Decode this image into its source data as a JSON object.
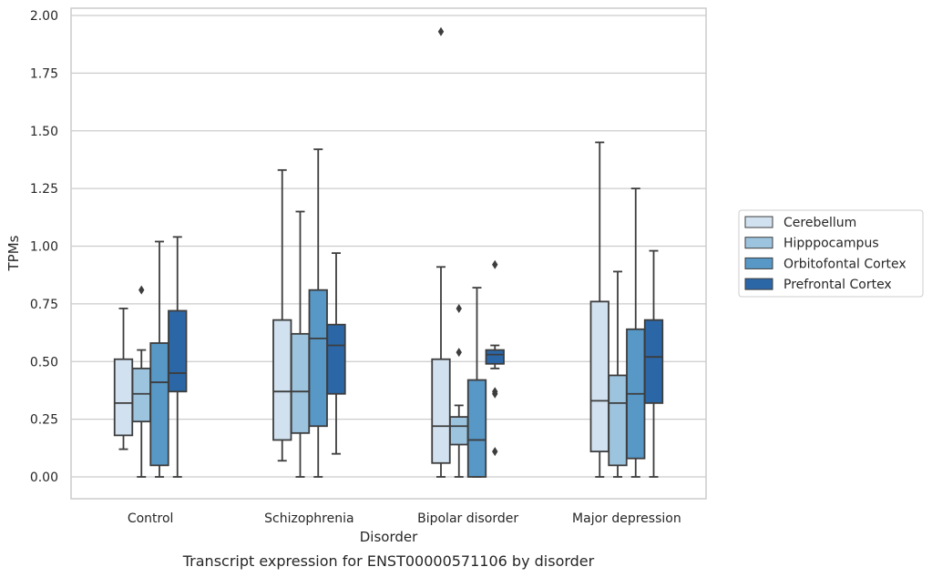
{
  "caption": "Transcript expression for ENST00000571106 by disorder",
  "chart_data": {
    "type": "box",
    "xlabel": "Disorder",
    "ylabel": "TPMs",
    "ylim": [
      -0.09,
      2.03
    ],
    "yticks": [
      "0.00",
      "0.25",
      "0.50",
      "0.75",
      "1.00",
      "1.25",
      "1.50",
      "1.75",
      "2.00"
    ],
    "categories": [
      "Control",
      "Schizophrenia",
      "Bipolar disorder",
      "Major depression"
    ],
    "grid": "horizontal",
    "legend_position": "right",
    "colors": [
      "#d1e1f0",
      "#9dc4de",
      "#5798c7",
      "#2b67a7"
    ],
    "series": [
      {
        "name": "Cerebellum",
        "boxes": [
          {
            "whislo": 0.12,
            "q1": 0.18,
            "med": 0.32,
            "q3": 0.51,
            "whishi": 0.73,
            "fliers": []
          },
          {
            "whislo": 0.07,
            "q1": 0.16,
            "med": 0.37,
            "q3": 0.68,
            "whishi": 1.33,
            "fliers": []
          },
          {
            "whislo": 0.0,
            "q1": 0.06,
            "med": 0.22,
            "q3": 0.51,
            "whishi": 0.91,
            "fliers": [
              1.93
            ]
          },
          {
            "whislo": 0.0,
            "q1": 0.11,
            "med": 0.33,
            "q3": 0.76,
            "whishi": 1.45,
            "fliers": []
          }
        ]
      },
      {
        "name": "Hipppocampus",
        "boxes": [
          {
            "whislo": 0.0,
            "q1": 0.24,
            "med": 0.36,
            "q3": 0.47,
            "whishi": 0.55,
            "fliers": [
              0.81
            ]
          },
          {
            "whislo": 0.0,
            "q1": 0.19,
            "med": 0.37,
            "q3": 0.62,
            "whishi": 1.15,
            "fliers": []
          },
          {
            "whislo": 0.0,
            "q1": 0.14,
            "med": 0.22,
            "q3": 0.26,
            "whishi": 0.31,
            "fliers": [
              0.54,
              0.73
            ]
          },
          {
            "whislo": 0.0,
            "q1": 0.05,
            "med": 0.32,
            "q3": 0.44,
            "whishi": 0.89,
            "fliers": []
          }
        ]
      },
      {
        "name": "Orbitofontal Cortex",
        "boxes": [
          {
            "whislo": 0.0,
            "q1": 0.05,
            "med": 0.41,
            "q3": 0.58,
            "whishi": 1.02,
            "fliers": []
          },
          {
            "whislo": 0.0,
            "q1": 0.22,
            "med": 0.6,
            "q3": 0.81,
            "whishi": 1.42,
            "fliers": []
          },
          {
            "whislo": 0.0,
            "q1": 0.0,
            "med": 0.16,
            "q3": 0.42,
            "whishi": 0.82,
            "fliers": []
          },
          {
            "whislo": 0.0,
            "q1": 0.08,
            "med": 0.36,
            "q3": 0.64,
            "whishi": 1.25,
            "fliers": []
          }
        ]
      },
      {
        "name": "Prefrontal Cortex",
        "boxes": [
          {
            "whislo": 0.0,
            "q1": 0.37,
            "med": 0.45,
            "q3": 0.72,
            "whishi": 1.04,
            "fliers": []
          },
          {
            "whislo": 0.1,
            "q1": 0.36,
            "med": 0.57,
            "q3": 0.66,
            "whishi": 0.97,
            "fliers": []
          },
          {
            "whislo": 0.47,
            "q1": 0.49,
            "med": 0.53,
            "q3": 0.55,
            "whishi": 0.57,
            "fliers": [
              0.11,
              0.36,
              0.37,
              0.92
            ]
          },
          {
            "whislo": 0.0,
            "q1": 0.32,
            "med": 0.52,
            "q3": 0.68,
            "whishi": 0.98,
            "fliers": []
          }
        ]
      }
    ]
  }
}
